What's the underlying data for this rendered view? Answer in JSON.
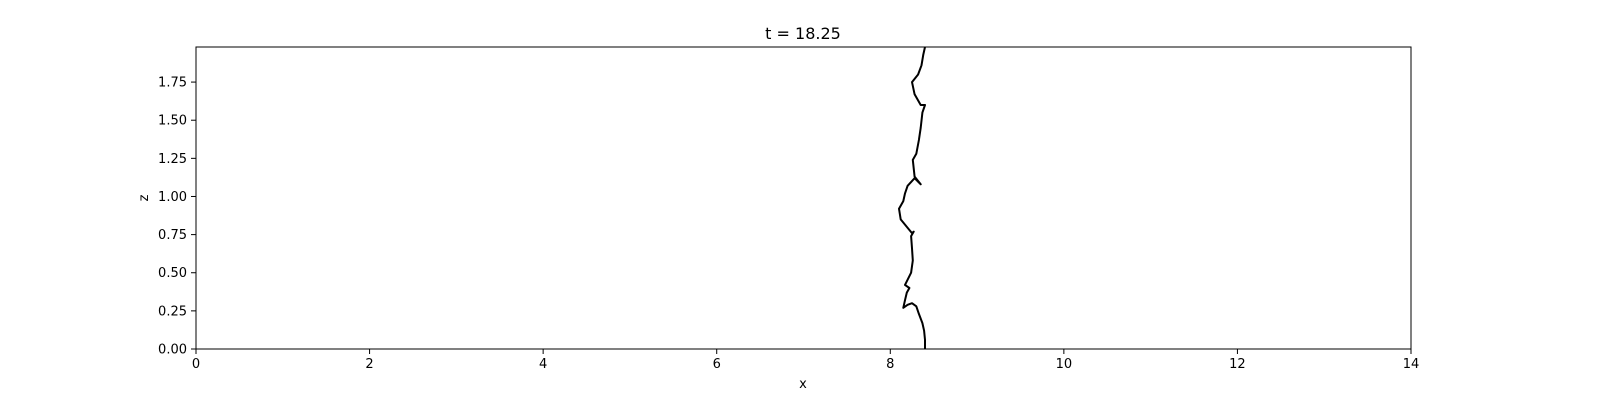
{
  "chart_data": {
    "type": "line",
    "title": "t = 18.25",
    "xlabel": "x",
    "ylabel": "z",
    "xlim": [
      0,
      14
    ],
    "ylim": [
      0,
      1.98
    ],
    "xticks": [
      0,
      2,
      4,
      6,
      8,
      10,
      12,
      14
    ],
    "xtick_labels": [
      "0",
      "2",
      "4",
      "6",
      "8",
      "10",
      "12",
      "14"
    ],
    "yticks": [
      0,
      0.25,
      0.5,
      0.75,
      1.0,
      1.25,
      1.5,
      1.75
    ],
    "ytick_labels": [
      "0.00",
      "0.25",
      "0.50",
      "0.75",
      "1.00",
      "1.25",
      "1.50",
      "1.75"
    ],
    "grid": false,
    "line_color": "#000000",
    "series": [
      {
        "x": [
          8.4,
          8.4,
          8.39,
          8.37,
          8.33,
          8.3,
          8.25,
          8.2,
          8.15,
          8.17,
          8.19,
          8.22,
          8.17,
          8.24,
          8.26,
          8.25,
          8.24,
          8.27,
          8.25,
          8.22,
          8.12,
          8.1,
          8.15,
          8.17,
          8.2,
          8.28,
          8.35,
          8.28,
          8.26,
          8.3,
          8.33,
          8.35,
          8.37,
          8.4,
          8.35,
          8.28,
          8.25,
          8.32,
          8.36,
          8.38,
          8.4
        ],
        "y": [
          0.0,
          0.06,
          0.12,
          0.17,
          0.23,
          0.28,
          0.3,
          0.29,
          0.27,
          0.32,
          0.37,
          0.4,
          0.42,
          0.5,
          0.58,
          0.66,
          0.74,
          0.77,
          0.76,
          0.78,
          0.85,
          0.92,
          0.97,
          1.02,
          1.07,
          1.12,
          1.08,
          1.13,
          1.24,
          1.28,
          1.37,
          1.45,
          1.55,
          1.6,
          1.6,
          1.67,
          1.75,
          1.8,
          1.86,
          1.93,
          1.98
        ]
      }
    ]
  }
}
